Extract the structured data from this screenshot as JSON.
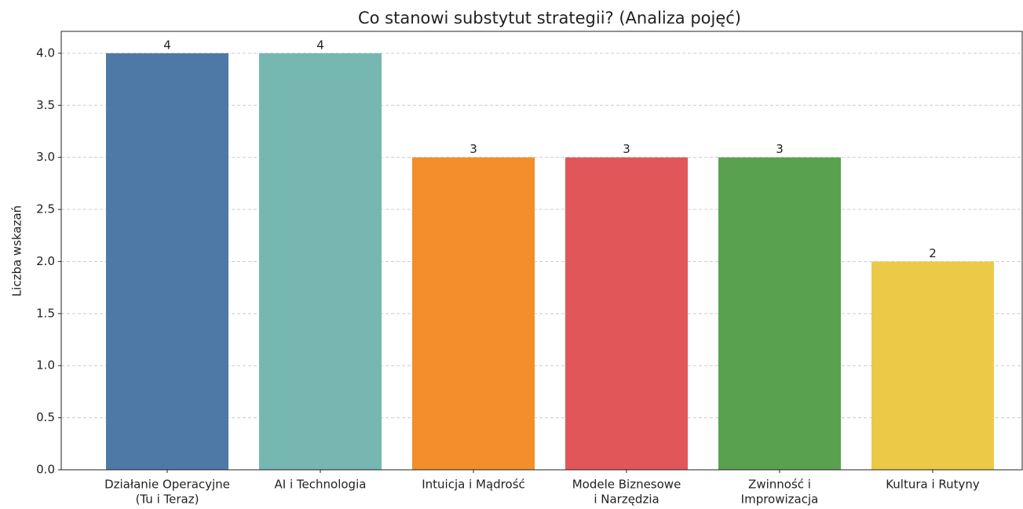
{
  "chart_data": {
    "type": "bar",
    "title": "Co stanowi substytut strategii? (Analiza pojęć)",
    "y_label": "Liczba wskazań",
    "categories": [
      [
        "Działanie Operacyjne",
        "(Tu i Teraz)"
      ],
      [
        "AI i Technologia"
      ],
      [
        "Intuicja i Mądrość"
      ],
      [
        "Modele Biznesowe",
        "i Narzędzia"
      ],
      [
        "Zwinność i",
        "Improwizacja"
      ],
      [
        "Kultura i Rutyny"
      ]
    ],
    "values": [
      4,
      4,
      3,
      3,
      3,
      2
    ],
    "colors": [
      "#4e79a7",
      "#76b7b2",
      "#f28e2b",
      "#e15759",
      "#59a14f",
      "#edc948"
    ],
    "ylim": [
      0,
      4.21
    ],
    "yticks": [
      {
        "value": 0,
        "label": "0.0"
      },
      {
        "value": 0.5,
        "label": "0.5"
      },
      {
        "value": 1,
        "label": "1.0"
      },
      {
        "value": 1.5,
        "label": "1.5"
      },
      {
        "value": 2,
        "label": "2.0"
      },
      {
        "value": 2.5,
        "label": "2.5"
      },
      {
        "value": 3,
        "label": "3.0"
      },
      {
        "value": 3.5,
        "label": "3.5"
      },
      {
        "value": 4,
        "label": "4.0"
      }
    ],
    "grid": true
  }
}
